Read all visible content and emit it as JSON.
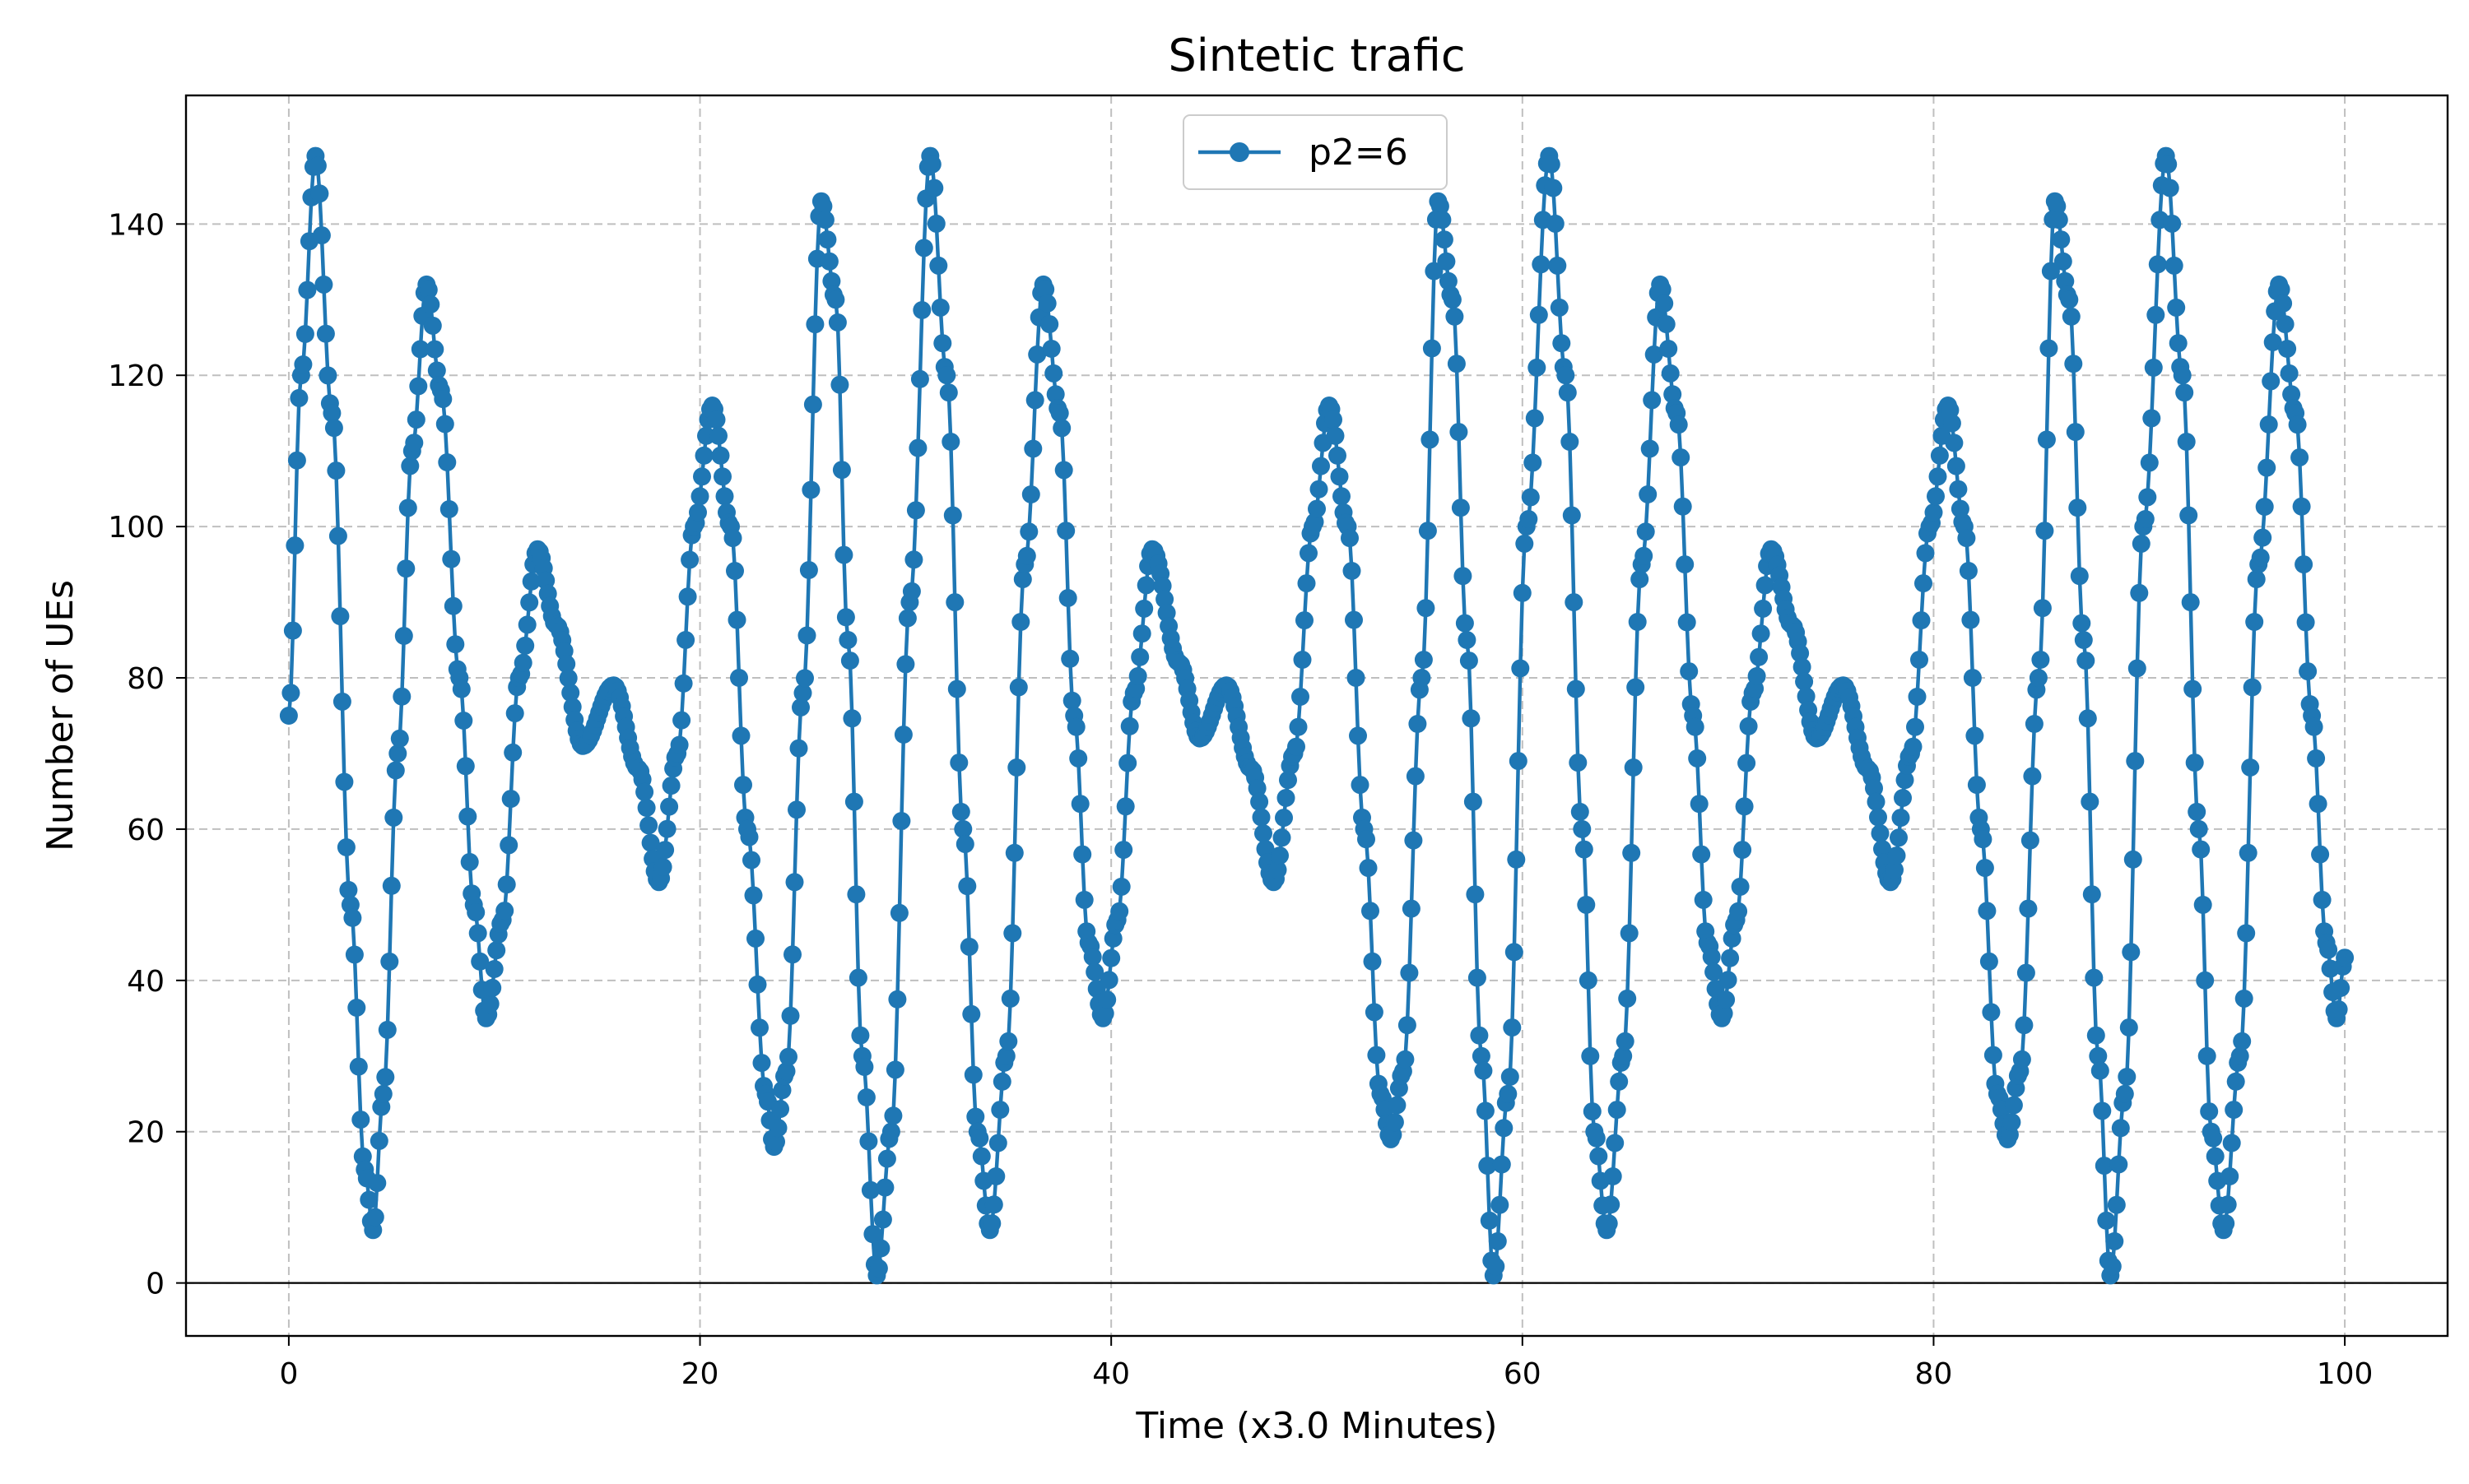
{
  "chart_data": {
    "type": "line",
    "title": "Sintetic trafic",
    "xlabel": "Time (x3.0 Minutes)",
    "ylabel": "Number of UEs",
    "xlim": [
      -5,
      105
    ],
    "ylim": [
      -7,
      157
    ],
    "xticks": [
      0,
      20,
      40,
      60,
      80,
      100
    ],
    "yticks": [
      0,
      20,
      40,
      60,
      80,
      100,
      120,
      140
    ],
    "grid": true,
    "zero_line": true,
    "legend": {
      "position": "upper center"
    },
    "series": [
      {
        "name": "p2=6",
        "color": "#1f77b4",
        "marker": "circle",
        "x_start": 0,
        "x_end": 100,
        "x_step": 0.1,
        "points": [
          [
            0,
            75
          ],
          [
            0.6,
            120
          ],
          [
            1.3,
            149
          ],
          [
            2.1,
            115
          ],
          [
            3,
            50
          ],
          [
            3.7,
            15
          ],
          [
            4.1,
            7
          ],
          [
            4.6,
            25
          ],
          [
            5.3,
            70
          ],
          [
            6,
            110
          ],
          [
            6.7,
            132
          ],
          [
            7.4,
            118
          ],
          [
            8.3,
            80
          ],
          [
            9,
            50
          ],
          [
            9.6,
            35
          ],
          [
            10.4,
            48
          ],
          [
            11.2,
            80
          ],
          [
            12.1,
            97
          ],
          [
            13,
            87
          ],
          [
            14.3,
            71
          ],
          [
            15.8,
            79
          ],
          [
            17,
            68
          ],
          [
            18,
            53
          ],
          [
            18.9,
            70
          ],
          [
            19.7,
            100
          ],
          [
            20.6,
            116
          ],
          [
            21.5,
            100
          ],
          [
            22.3,
            60
          ],
          [
            23.2,
            25
          ],
          [
            23.6,
            18
          ],
          [
            24.2,
            28
          ],
          [
            25,
            78
          ],
          [
            25.9,
            143
          ],
          [
            26.6,
            130
          ],
          [
            27.2,
            85
          ],
          [
            27.9,
            30
          ],
          [
            28.6,
            1
          ],
          [
            29.3,
            20
          ],
          [
            30.2,
            90
          ],
          [
            31.2,
            149
          ],
          [
            32,
            120
          ],
          [
            32.8,
            60
          ],
          [
            33.5,
            20
          ],
          [
            34.1,
            7
          ],
          [
            34.9,
            30
          ],
          [
            35.8,
            95
          ],
          [
            36.7,
            132
          ],
          [
            37.5,
            115
          ],
          [
            38.2,
            75
          ],
          [
            38.9,
            45
          ],
          [
            39.6,
            35
          ],
          [
            40.3,
            48
          ],
          [
            41.1,
            78
          ],
          [
            42,
            97
          ],
          [
            43.3,
            82
          ],
          [
            44.3,
            72
          ],
          [
            45.6,
            79
          ],
          [
            46.8,
            68
          ],
          [
            47.9,
            53
          ],
          [
            48.9,
            70
          ],
          [
            49.8,
            100
          ],
          [
            50.6,
            116
          ],
          [
            51.5,
            100
          ],
          [
            52.3,
            60
          ],
          [
            53.1,
            25
          ],
          [
            53.6,
            19
          ],
          [
            54.2,
            28
          ],
          [
            55.1,
            80
          ],
          [
            55.9,
            143
          ],
          [
            56.6,
            130
          ],
          [
            57.3,
            85
          ],
          [
            58,
            30
          ],
          [
            58.6,
            1
          ],
          [
            59.3,
            25
          ],
          [
            60.2,
            100
          ],
          [
            61.3,
            149
          ],
          [
            62.1,
            120
          ],
          [
            62.9,
            60
          ],
          [
            63.5,
            20
          ],
          [
            64.1,
            7
          ],
          [
            64.9,
            30
          ],
          [
            65.8,
            95
          ],
          [
            66.7,
            132
          ],
          [
            67.5,
            115
          ],
          [
            68.3,
            75
          ],
          [
            69,
            45
          ],
          [
            69.7,
            35
          ],
          [
            70.4,
            48
          ],
          [
            71.2,
            78
          ],
          [
            72.1,
            97
          ],
          [
            73.1,
            87
          ],
          [
            74.3,
            72
          ],
          [
            75.6,
            79
          ],
          [
            76.8,
            68
          ],
          [
            77.9,
            53
          ],
          [
            78.9,
            70
          ],
          [
            79.8,
            100
          ],
          [
            80.7,
            116
          ],
          [
            81.5,
            100
          ],
          [
            82.3,
            60
          ],
          [
            83.1,
            25
          ],
          [
            83.6,
            19
          ],
          [
            84.2,
            28
          ],
          [
            85.1,
            80
          ],
          [
            85.9,
            143
          ],
          [
            86.6,
            130
          ],
          [
            87.3,
            85
          ],
          [
            88,
            30
          ],
          [
            88.6,
            1
          ],
          [
            89.3,
            25
          ],
          [
            90.2,
            100
          ],
          [
            91.3,
            149
          ],
          [
            92.1,
            120
          ],
          [
            92.9,
            60
          ],
          [
            93.5,
            20
          ],
          [
            94.1,
            7
          ],
          [
            94.9,
            30
          ],
          [
            95.8,
            95
          ],
          [
            96.8,
            132
          ],
          [
            97.6,
            115
          ],
          [
            98.4,
            75
          ],
          [
            99.1,
            45
          ],
          [
            99.6,
            35
          ],
          [
            100,
            43
          ]
        ]
      }
    ]
  }
}
